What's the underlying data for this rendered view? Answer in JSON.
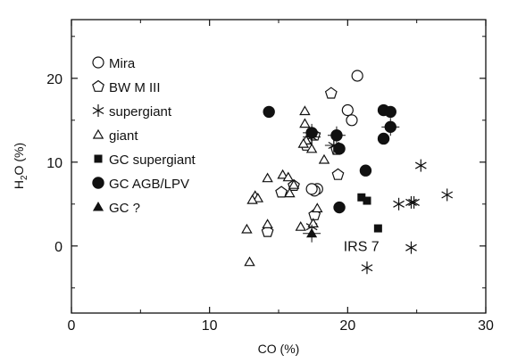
{
  "chart_data": {
    "type": "scatter",
    "title": "",
    "xlabel": "CO (%)",
    "ylabel_main": "H",
    "ylabel_sub": "2",
    "ylabel_rest": "O (%)",
    "xlim": [
      0,
      30
    ],
    "ylim": [
      -8,
      27
    ],
    "xticks": [
      0,
      10,
      20,
      30
    ],
    "yticks": [
      0,
      10,
      20
    ],
    "grid": false,
    "legend_position": "top-left",
    "annotations": [
      {
        "text": "IRS 7",
        "x": 19.7,
        "y": -0.6
      }
    ],
    "series": [
      {
        "name": "Mira",
        "marker": "open-circle",
        "points": [
          {
            "x": 20.7,
            "y": 20.3
          },
          {
            "x": 20.0,
            "y": 16.2
          },
          {
            "x": 20.3,
            "y": 15.0
          },
          {
            "x": 17.8,
            "y": 6.8
          },
          {
            "x": 17.6,
            "y": 6.6
          },
          {
            "x": 17.4,
            "y": 6.8
          }
        ]
      },
      {
        "name": "BW M III",
        "marker": "open-pentagon",
        "points": [
          {
            "x": 18.8,
            "y": 18.2
          },
          {
            "x": 17.6,
            "y": 13.2
          },
          {
            "x": 17.0,
            "y": 12.0
          },
          {
            "x": 19.2,
            "y": 11.5
          },
          {
            "x": 19.3,
            "y": 8.5
          },
          {
            "x": 16.1,
            "y": 7.2
          },
          {
            "x": 15.2,
            "y": 6.4
          },
          {
            "x": 17.6,
            "y": 3.7
          },
          {
            "x": 14.2,
            "y": 1.7
          }
        ]
      },
      {
        "name": "supergiant",
        "marker": "star",
        "points": [
          {
            "x": 17.4,
            "y": 13.0,
            "err": true
          },
          {
            "x": 19.0,
            "y": 12.0,
            "err": true
          },
          {
            "x": 25.3,
            "y": 9.6
          },
          {
            "x": 27.2,
            "y": 6.1
          },
          {
            "x": 24.6,
            "y": 5.2
          },
          {
            "x": 24.8,
            "y": 5.2
          },
          {
            "x": 23.7,
            "y": 5.0
          },
          {
            "x": 17.4,
            "y": 2.3
          },
          {
            "x": 24.6,
            "y": -0.2
          },
          {
            "x": 21.4,
            "y": -2.6
          }
        ]
      },
      {
        "name": "giant",
        "marker": "open-triangle",
        "points": [
          {
            "x": 16.9,
            "y": 16.1
          },
          {
            "x": 16.9,
            "y": 14.6
          },
          {
            "x": 17.0,
            "y": 12.6
          },
          {
            "x": 16.8,
            "y": 12.2
          },
          {
            "x": 17.4,
            "y": 11.6
          },
          {
            "x": 18.3,
            "y": 10.3
          },
          {
            "x": 14.2,
            "y": 8.1
          },
          {
            "x": 15.3,
            "y": 8.5
          },
          {
            "x": 15.7,
            "y": 8.2
          },
          {
            "x": 16.1,
            "y": 7.3
          },
          {
            "x": 13.3,
            "y": 6.0
          },
          {
            "x": 13.5,
            "y": 5.7
          },
          {
            "x": 13.1,
            "y": 5.5
          },
          {
            "x": 15.8,
            "y": 6.3
          },
          {
            "x": 17.8,
            "y": 4.5
          },
          {
            "x": 14.2,
            "y": 2.6
          },
          {
            "x": 12.7,
            "y": 2.0
          },
          {
            "x": 16.6,
            "y": 2.3
          },
          {
            "x": 17.5,
            "y": 2.7
          },
          {
            "x": 12.9,
            "y": -1.9
          }
        ]
      },
      {
        "name": "GC supergiant",
        "marker": "filled-square",
        "points": [
          {
            "x": 21.0,
            "y": 5.8
          },
          {
            "x": 21.4,
            "y": 5.4
          },
          {
            "x": 22.2,
            "y": 2.1
          }
        ]
      },
      {
        "name": "GC AGB/LPV",
        "marker": "filled-circle",
        "points": [
          {
            "x": 14.3,
            "y": 16.0
          },
          {
            "x": 22.6,
            "y": 16.2
          },
          {
            "x": 23.1,
            "y": 16.0
          },
          {
            "x": 23.1,
            "y": 14.2,
            "err": true
          },
          {
            "x": 17.4,
            "y": 13.5,
            "err": true
          },
          {
            "x": 19.2,
            "y": 13.2,
            "err": true
          },
          {
            "x": 22.6,
            "y": 12.8
          },
          {
            "x": 19.4,
            "y": 11.6
          },
          {
            "x": 21.3,
            "y": 9.0
          },
          {
            "x": 19.4,
            "y": 4.6
          }
        ]
      },
      {
        "name": "GC ?",
        "marker": "filled-triangle",
        "points": [
          {
            "x": 17.4,
            "y": 1.5,
            "err": true
          }
        ]
      }
    ]
  }
}
